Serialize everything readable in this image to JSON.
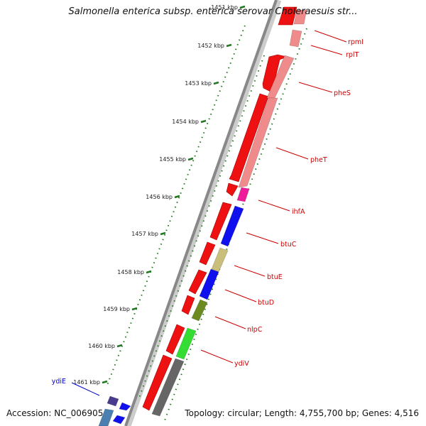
{
  "title": "Salmonella enterica subsp. enterica serovar Choleraesuis str...",
  "footer": {
    "accession": "Accession: NC_006905",
    "topology": "Topology: circular; Length: 4,755,700 bp; Genes: 4,516"
  },
  "ticks": [
    "1451 kbp",
    "1452 kbp",
    "1453 kbp",
    "1454 kbp",
    "1455 kbp",
    "1456 kbp",
    "1457 kbp",
    "1458 kbp",
    "1459 kbp",
    "1460 kbp",
    "1461 kbp"
  ],
  "genes": [
    {
      "name": "rpmI",
      "color": "#cc0000"
    },
    {
      "name": "rplT",
      "color": "#cc0000"
    },
    {
      "name": "pheS",
      "color": "#cc0000"
    },
    {
      "name": "pheT",
      "color": "#cc0000"
    },
    {
      "name": "ihfA",
      "color": "#cc0000"
    },
    {
      "name": "btuC",
      "color": "#cc0000"
    },
    {
      "name": "btuE",
      "color": "#cc0000"
    },
    {
      "name": "btuD",
      "color": "#cc0000"
    },
    {
      "name": "nlpC",
      "color": "#cc0000"
    },
    {
      "name": "ydiV",
      "color": "#cc0000"
    },
    {
      "name": "ydiE",
      "color": "#0000cc"
    }
  ],
  "colors": {
    "cds_red": "#ee1111",
    "pink": "#f08b8b",
    "magenta": "#ee1b9a",
    "blue": "#1010ee",
    "khaki": "#c9bf7a",
    "olive": "#6b8a1f",
    "green": "#33dd33",
    "grey": "#666666",
    "purple": "#4b3b8f",
    "steel": "#4a7fb0",
    "tick_green": "#227722"
  }
}
